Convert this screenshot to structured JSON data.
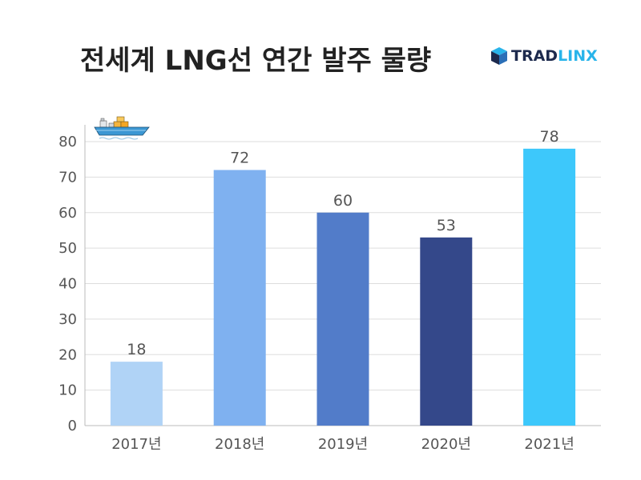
{
  "title": "전세계 LNG선 연간 발주 물량",
  "logo": {
    "part1": "TRAD",
    "part2": "LINX",
    "icon": "cube-logo-icon"
  },
  "decoration_icon": "cargo-ship-icon",
  "chart_data": {
    "type": "bar",
    "title": "전세계 LNG선 연간 발주 물량",
    "categories": [
      "2017년",
      "2018년",
      "2019년",
      "2020년",
      "2021년"
    ],
    "values": [
      18,
      72,
      60,
      53,
      78
    ],
    "colors": [
      "#b0d3f6",
      "#7fb1f0",
      "#527cc9",
      "#34488a",
      "#3dc8fb"
    ],
    "ylim": [
      0,
      80
    ],
    "yticks": [
      0,
      10,
      20,
      30,
      40,
      50,
      60,
      70,
      80
    ],
    "grid": true,
    "data_labels": true,
    "xlabel": "",
    "ylabel": ""
  }
}
